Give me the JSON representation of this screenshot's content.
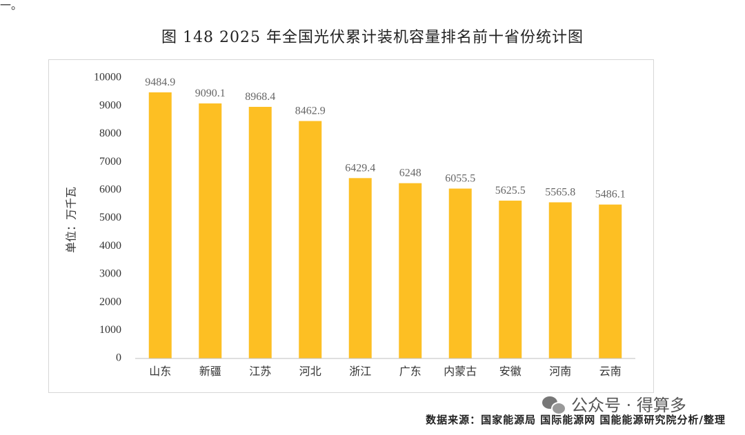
{
  "top_fragment": "一。",
  "figure_title": "图 148  2025 年全国光伏累计装机容量排名前十省份统计图",
  "watermark": {
    "text": "公众号 · 得算多",
    "icon": "wechat-icon"
  },
  "source_note": "数据来源：国家能源局 国际能源网 国能能源研究院分析/整理",
  "chart_data": {
    "type": "bar",
    "title": "图 148  2025 年全国光伏累计装机容量排名前十省份统计图",
    "ylabel": "单位：万千瓦",
    "xlabel": "",
    "categories": [
      "山东",
      "新疆",
      "江苏",
      "河北",
      "浙江",
      "广东",
      "内蒙古",
      "安徽",
      "河南",
      "云南"
    ],
    "values": [
      9484.9,
      9090.1,
      8968.4,
      8462.9,
      6429.4,
      6248,
      6055.5,
      5625.5,
      5565.8,
      5486.1
    ],
    "data_labels": [
      "9484.9",
      "9090.1",
      "8968.4",
      "8462.9",
      "6429.4",
      "6248",
      "6055.5",
      "5625.5",
      "5565.8",
      "5486.1"
    ],
    "ylim": [
      0,
      10000
    ],
    "yticks": [
      0,
      1000,
      2000,
      3000,
      4000,
      5000,
      6000,
      7000,
      8000,
      9000,
      10000
    ],
    "grid": false,
    "legend": "none",
    "bar_color": "#FDBF23"
  }
}
